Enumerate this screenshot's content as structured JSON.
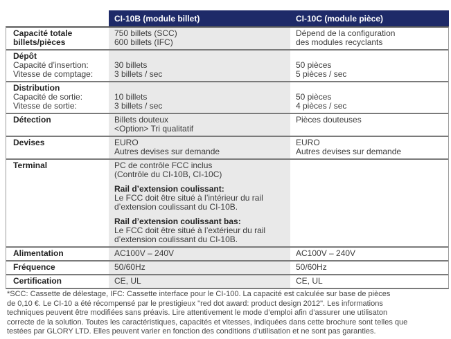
{
  "colors": {
    "header_bg": "#1e2a68",
    "ci10b_column_bg": "#e9e9e9",
    "row_border": "#7a7a7a"
  },
  "header": {
    "col_ci10b": "CI-10B (module billet)",
    "col_ci10c": "CI-10C (module pièce)"
  },
  "table": {
    "rows": [
      {
        "label": [
          {
            "t": "Capacité totale",
            "b": true
          },
          {
            "t": "billets/pièces",
            "b": true
          }
        ],
        "ci10b": [
          {
            "t": "750 billets (SCC)"
          },
          {
            "t": "600 billets (IFC)"
          }
        ],
        "ci10c": [
          {
            "t": "Dépend de la configuration"
          },
          {
            "t": "des modules recyclants"
          }
        ]
      },
      {
        "label": [
          {
            "t": "Dépôt",
            "b": true
          },
          {
            "t": "Capacité d’insertion:"
          },
          {
            "t": "Vitesse de comptage:"
          }
        ],
        "ci10b": [
          {
            "t": ""
          },
          {
            "t": "30 billets"
          },
          {
            "t": "3 billets / sec"
          }
        ],
        "ci10c": [
          {
            "t": ""
          },
          {
            "t": "50 pièces"
          },
          {
            "t": "5 pièces / sec"
          }
        ]
      },
      {
        "label": [
          {
            "t": "Distribution",
            "b": true
          },
          {
            "t": "Capacité de sortie:"
          },
          {
            "t": "Vitesse de sortie:"
          }
        ],
        "ci10b": [
          {
            "t": ""
          },
          {
            "t": "10 billets"
          },
          {
            "t": "3 billets / sec"
          }
        ],
        "ci10c": [
          {
            "t": ""
          },
          {
            "t": "50 pièces"
          },
          {
            "t": "4 pièces / sec"
          }
        ]
      },
      {
        "label": [
          {
            "t": "Détection",
            "b": true
          }
        ],
        "ci10b": [
          {
            "t": "Billets douteux"
          },
          {
            "t": "<Option> Tri qualitatif"
          }
        ],
        "ci10c": [
          {
            "t": "Pièces douteuses"
          }
        ]
      },
      {
        "label": [
          {
            "t": "Devises",
            "b": true
          }
        ],
        "ci10b": [
          {
            "t": "EURO"
          },
          {
            "t": "Autres devises sur demande"
          }
        ],
        "ci10c": [
          {
            "t": "EURO"
          },
          {
            "t": "Autres devises sur demande"
          }
        ]
      },
      {
        "label": [
          {
            "t": "Terminal",
            "b": true
          }
        ],
        "ci10b": [
          {
            "t": "PC de contrôle FCC inclus"
          },
          {
            "t": "(Contrôle du CI-10B, CI-10C)"
          },
          {
            "t": "Rail d’extension coulissant:",
            "b": true,
            "gap": true
          },
          {
            "t": "Le FCC doit être situé à l’intérieur du rail"
          },
          {
            "t": "d’extension coulissant du CI-10B."
          },
          {
            "t": "Rail d’extension coulissant bas:",
            "b": true,
            "gap": true
          },
          {
            "t": "Le FCC doit être situé à l’extérieur du rail"
          },
          {
            "t": "d’extension coulissant du CI-10B."
          }
        ],
        "ci10c": []
      },
      {
        "label": [
          {
            "t": "Alimentation",
            "b": true
          }
        ],
        "ci10b": [
          {
            "t": "AC100V – 240V"
          }
        ],
        "ci10c": [
          {
            "t": "AC100V – 240V"
          }
        ]
      },
      {
        "label": [
          {
            "t": "Fréquence",
            "b": true
          }
        ],
        "ci10b": [
          {
            "t": "50/60Hz"
          }
        ],
        "ci10c": [
          {
            "t": "50/60Hz"
          }
        ]
      },
      {
        "label": [
          {
            "t": "Certification",
            "b": true
          }
        ],
        "ci10b": [
          {
            "t": "CE, UL"
          }
        ],
        "ci10c": [
          {
            "t": "CE, UL"
          }
        ]
      }
    ]
  },
  "footnote": {
    "lines": [
      "*SCC: Cassette de délestage, IFC: Cassette interface pour le CI-100. La capacité est calculée sur base de pièces",
      "de 0,10 €. Le CI-10 a été récompensé par le prestigieux \"red dot award: product design 2012\". Les informations",
      "techniques peuvent être modifiées sans préavis. Lire attentivement le mode d’emploi afin d’assurer une utilisaton",
      "correcte de la solution. Toutes les caractéristiques, capacités et vitesses, indiquées dans cette brochure sont telles que",
      "testées par GLORY LTD. Elles peuvent varier en fonction des conditions d’utilisation et ne sont pas garanties."
    ]
  }
}
